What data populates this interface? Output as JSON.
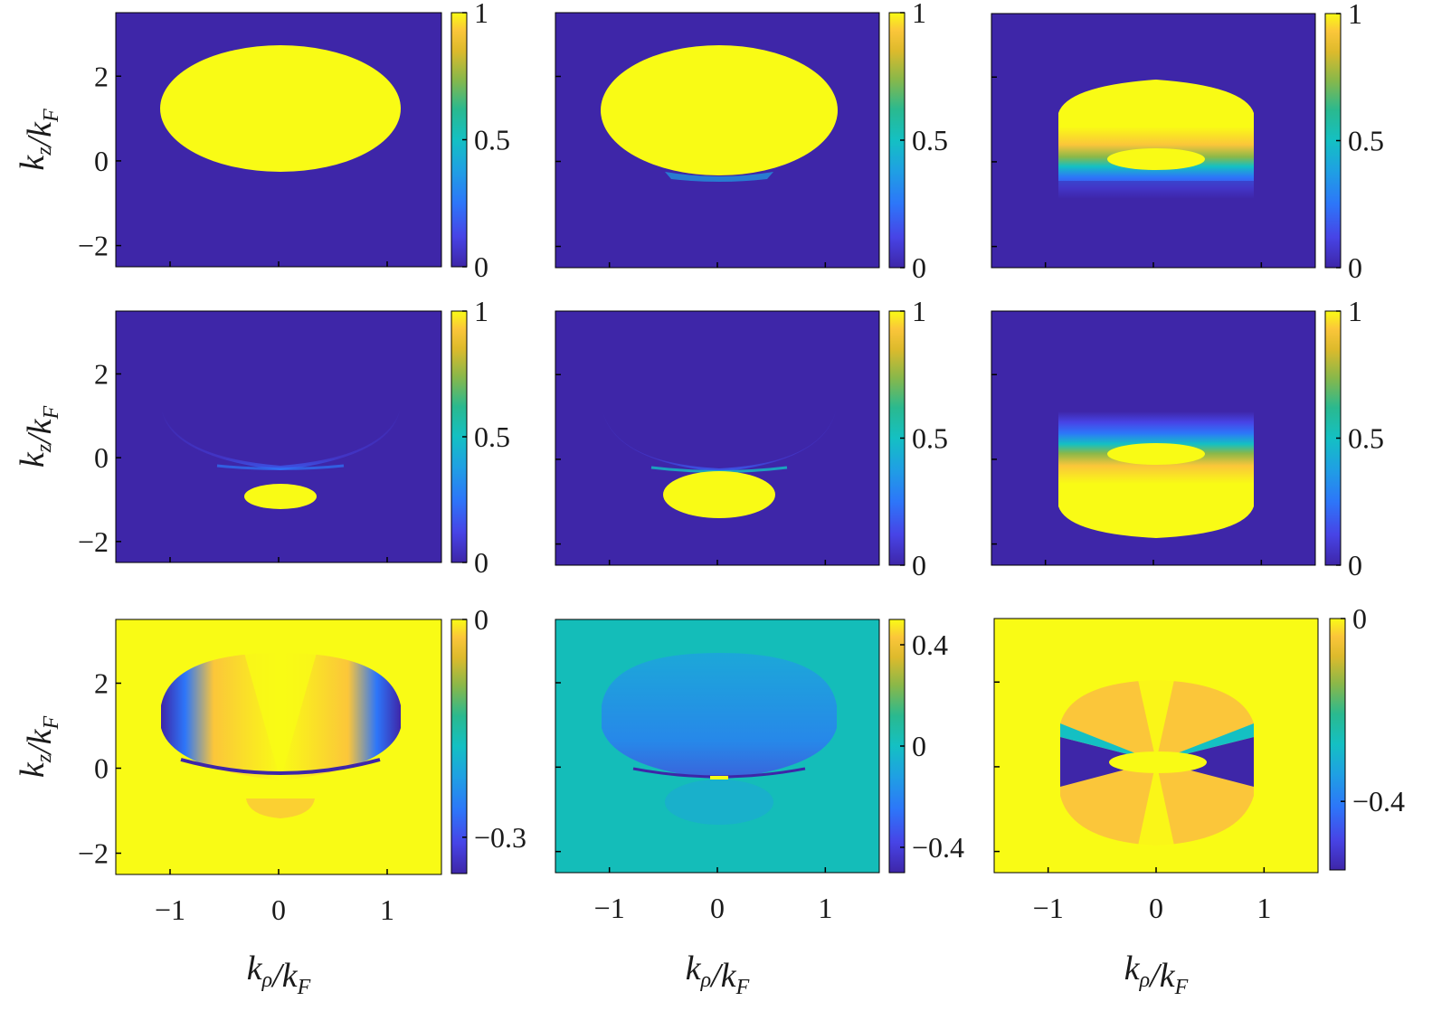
{
  "chart_data": [
    {
      "type": "heatmap",
      "row": 0,
      "col": 0,
      "xlim": [
        -1.5,
        1.5
      ],
      "ylim": [
        -2.5,
        3.5
      ],
      "yticks": [
        "−2",
        "0",
        "2"
      ],
      "clim": [
        0,
        1
      ],
      "cbar_ticks": [
        {
          "value": 0,
          "label": "0"
        },
        {
          "value": 0.5,
          "label": "0.5"
        },
        {
          "value": 1,
          "label": "1"
        }
      ],
      "ylabel": "k_z/k_F"
    },
    {
      "type": "heatmap",
      "row": 0,
      "col": 1,
      "xlim": [
        -1.5,
        1.5
      ],
      "ylim": [
        -2.5,
        3.5
      ],
      "clim": [
        0,
        1
      ],
      "cbar_ticks": [
        {
          "value": 0,
          "label": "0"
        },
        {
          "value": 0.5,
          "label": "0.5"
        },
        {
          "value": 1,
          "label": "1"
        }
      ]
    },
    {
      "type": "heatmap",
      "row": 0,
      "col": 2,
      "xlim": [
        -1.5,
        1.5
      ],
      "ylim": [
        -2.5,
        3.5
      ],
      "clim": [
        0,
        1
      ],
      "cbar_ticks": [
        {
          "value": 0,
          "label": "0"
        },
        {
          "value": 0.5,
          "label": "0.5"
        },
        {
          "value": 1,
          "label": "1"
        }
      ]
    },
    {
      "type": "heatmap",
      "row": 1,
      "col": 0,
      "xlim": [
        -1.5,
        1.5
      ],
      "ylim": [
        -2.5,
        3.5
      ],
      "yticks": [
        "−2",
        "0",
        "2"
      ],
      "clim": [
        0,
        1
      ],
      "cbar_ticks": [
        {
          "value": 0,
          "label": "0"
        },
        {
          "value": 0.5,
          "label": "0.5"
        },
        {
          "value": 1,
          "label": "1"
        }
      ],
      "ylabel": "k_z/k_F"
    },
    {
      "type": "heatmap",
      "row": 1,
      "col": 1,
      "xlim": [
        -1.5,
        1.5
      ],
      "ylim": [
        -2.5,
        3.5
      ],
      "clim": [
        0,
        1
      ],
      "cbar_ticks": [
        {
          "value": 0,
          "label": "0"
        },
        {
          "value": 0.5,
          "label": "0.5"
        },
        {
          "value": 1,
          "label": "1"
        }
      ]
    },
    {
      "type": "heatmap",
      "row": 1,
      "col": 2,
      "xlim": [
        -1.5,
        1.5
      ],
      "ylim": [
        -2.5,
        3.5
      ],
      "clim": [
        0,
        1
      ],
      "cbar_ticks": [
        {
          "value": 0,
          "label": "0"
        },
        {
          "value": 0.5,
          "label": "0.5"
        },
        {
          "value": 1,
          "label": "1"
        }
      ]
    },
    {
      "type": "heatmap",
      "row": 2,
      "col": 0,
      "xlim": [
        -1.5,
        1.5
      ],
      "ylim": [
        -2.5,
        3.5
      ],
      "xticks": [
        "−1",
        "0",
        "1"
      ],
      "yticks": [
        "−2",
        "0",
        "2"
      ],
      "clim": [
        -0.35,
        0
      ],
      "cbar_ticks": [
        {
          "value": -0.3,
          "label": "−0.3"
        },
        {
          "value": 0,
          "label": "0"
        }
      ],
      "xlabel": "k_ρ/k_F",
      "ylabel": "k_z/k_F"
    },
    {
      "type": "heatmap",
      "row": 2,
      "col": 1,
      "xlim": [
        -1.5,
        1.5
      ],
      "ylim": [
        -2.5,
        3.5
      ],
      "xticks": [
        "−1",
        "0",
        "1"
      ],
      "clim": [
        -0.5,
        0.5
      ],
      "cbar_ticks": [
        {
          "value": -0.4,
          "label": "−0.4"
        },
        {
          "value": 0,
          "label": "0"
        },
        {
          "value": 0.4,
          "label": "0.4"
        }
      ],
      "xlabel": "k_ρ/k_F"
    },
    {
      "type": "heatmap",
      "row": 2,
      "col": 2,
      "xlim": [
        -1.5,
        1.5
      ],
      "ylim": [
        -2.5,
        3.5
      ],
      "xticks": [
        "−1",
        "0",
        "1"
      ],
      "clim": [
        -0.55,
        0
      ],
      "cbar_ticks": [
        {
          "value": -0.4,
          "label": "−0.4"
        },
        {
          "value": 0,
          "label": "0"
        }
      ],
      "xlabel": "k_ρ/k_F"
    }
  ],
  "colors": {
    "parula": [
      "#3e26a8",
      "#4744e6",
      "#2d76f9",
      "#1fa0e3",
      "#14c0c3",
      "#2ab98f",
      "#8ab849",
      "#ddba2c",
      "#fbc63a",
      "#f9fb15"
    ],
    "background_low": "#3e26a8",
    "high": "#f9fb15",
    "mid_cyan": "#14bdb9"
  }
}
